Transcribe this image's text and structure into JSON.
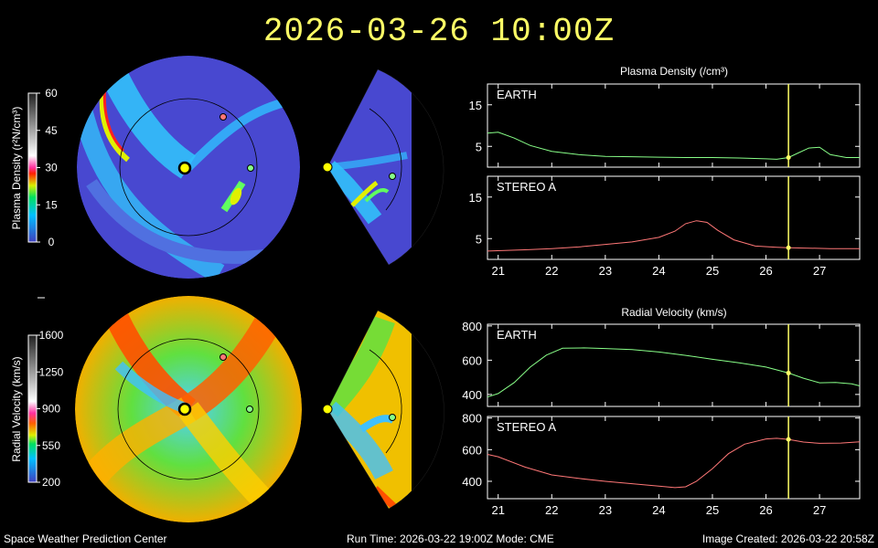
{
  "title": "2026-03-26 10:00Z",
  "footer": {
    "left": "Space Weather Prediction Center",
    "center": "Run Time: 2026-03-22 19:00Z  Mode: CME",
    "right": "Image Created: 2026-03-22 20:58Z"
  },
  "colorbars": [
    {
      "label": "Plasma Density (r²N/cm³)",
      "ticks": [
        "60",
        "45",
        "30",
        "15",
        "0"
      ]
    },
    {
      "label": "Radial Velocity (km/s)",
      "ticks": [
        "1600",
        "1250",
        "900",
        "550",
        "200"
      ]
    }
  ],
  "colors": {
    "earth_line": "#88ff88",
    "stereo_line": "#ff7777",
    "time_marker": "#ffff66",
    "earth_marker": "#88ff88",
    "stereo_marker": "#ff7777"
  },
  "chart_data": [
    {
      "type": "line",
      "group_title": "Plasma Density (/cm³)",
      "panel_label": "EARTH",
      "ylim": [
        0,
        20
      ],
      "yticks": [
        5,
        15
      ],
      "xlim": [
        20.8,
        27.75
      ],
      "xticks": [
        21,
        22,
        23,
        24,
        25,
        26,
        27
      ],
      "current_time": 26.42,
      "series": [
        {
          "color": "#88ff88",
          "x": [
            20.8,
            21.0,
            21.3,
            21.6,
            22.0,
            22.5,
            23.0,
            23.5,
            24.0,
            24.5,
            25.0,
            25.5,
            26.0,
            26.2,
            26.42,
            26.6,
            26.8,
            27.0,
            27.2,
            27.5,
            27.75
          ],
          "y": [
            8.2,
            8.4,
            7.0,
            5.2,
            3.8,
            3.0,
            2.6,
            2.5,
            2.4,
            2.3,
            2.3,
            2.2,
            2.0,
            1.9,
            2.3,
            3.4,
            4.6,
            4.8,
            3.0,
            2.3,
            2.3
          ]
        }
      ]
    },
    {
      "type": "line",
      "panel_label": "STEREO A",
      "ylim": [
        0,
        20
      ],
      "yticks": [
        5,
        15
      ],
      "xlim": [
        20.8,
        27.75
      ],
      "xticks": [
        21,
        22,
        23,
        24,
        25,
        26,
        27
      ],
      "xticklabels": [
        "21",
        "22",
        "23",
        "24",
        "25",
        "26",
        "27"
      ],
      "current_time": 26.42,
      "series": [
        {
          "color": "#ff7777",
          "x": [
            20.8,
            21.5,
            22.0,
            22.5,
            23.0,
            23.5,
            24.0,
            24.3,
            24.5,
            24.7,
            24.9,
            25.1,
            25.4,
            25.8,
            26.2,
            26.42,
            26.8,
            27.2,
            27.75
          ],
          "y": [
            2.0,
            2.3,
            2.6,
            3.0,
            3.6,
            4.2,
            5.3,
            6.8,
            8.6,
            9.3,
            8.9,
            7.0,
            4.7,
            3.2,
            2.9,
            2.8,
            2.7,
            2.6,
            2.6
          ]
        }
      ]
    },
    {
      "type": "line",
      "group_title": "Radial Velocity (km/s)",
      "panel_label": "EARTH",
      "ylim": [
        330,
        810
      ],
      "yticks": [
        400,
        600,
        800
      ],
      "xlim": [
        20.8,
        27.75
      ],
      "xticks": [
        21,
        22,
        23,
        24,
        25,
        26,
        27
      ],
      "current_time": 26.42,
      "series": [
        {
          "color": "#88ff88",
          "x": [
            20.8,
            21.0,
            21.3,
            21.6,
            21.9,
            22.2,
            22.6,
            23.0,
            23.5,
            24.0,
            24.5,
            25.0,
            25.5,
            26.0,
            26.42,
            26.7,
            27.0,
            27.3,
            27.6,
            27.75
          ],
          "y": [
            385,
            405,
            470,
            560,
            630,
            670,
            672,
            668,
            662,
            648,
            628,
            605,
            585,
            560,
            525,
            495,
            468,
            470,
            462,
            450
          ]
        }
      ]
    },
    {
      "type": "line",
      "panel_label": "STEREO A",
      "ylim": [
        290,
        810
      ],
      "yticks": [
        400,
        600,
        800
      ],
      "xlim": [
        20.8,
        27.75
      ],
      "xticks": [
        21,
        22,
        23,
        24,
        25,
        26,
        27
      ],
      "xticklabels": [
        "21",
        "22",
        "23",
        "24",
        "25",
        "26",
        "27"
      ],
      "current_time": 26.42,
      "series": [
        {
          "color": "#ff7777",
          "x": [
            20.8,
            21.0,
            21.5,
            22.0,
            22.5,
            23.0,
            23.5,
            24.0,
            24.3,
            24.5,
            24.7,
            25.0,
            25.3,
            25.6,
            26.0,
            26.2,
            26.42,
            26.7,
            27.0,
            27.4,
            27.75
          ],
          "y": [
            570,
            555,
            490,
            440,
            418,
            400,
            385,
            370,
            360,
            365,
            400,
            480,
            575,
            635,
            668,
            672,
            665,
            648,
            640,
            642,
            650
          ]
        }
      ]
    }
  ]
}
